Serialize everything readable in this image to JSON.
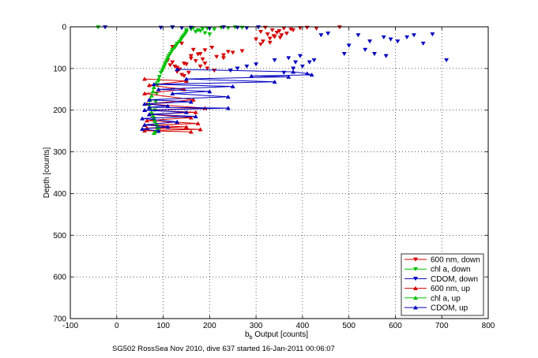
{
  "chart_data": {
    "type": "line",
    "title": "",
    "xlabel_main": "b",
    "xlabel_sub": "b",
    "xlabel_rest": " Output [counts]",
    "ylabel": "Depth [counts]",
    "xlim": [
      -100,
      800
    ],
    "ylim": [
      0,
      700
    ],
    "y_reversed": true,
    "grid": true,
    "grid_style": "dotted",
    "xticks": [
      "-100",
      "0",
      "100",
      "200",
      "300",
      "400",
      "500",
      "600",
      "700",
      "800"
    ],
    "yticks": [
      "0",
      "100",
      "200",
      "300",
      "400",
      "500",
      "600",
      "700"
    ],
    "legend_position": "bottom-right",
    "footer": "SG502 RossSea Nov 2010, dive 637 started 16-Jan-2011 00:06:07",
    "series": [
      {
        "name": "600 nm, down",
        "color": "#d40000",
        "marker": "triangle-down",
        "line": false,
        "x": [
          320,
          335,
          345,
          355,
          340,
          330,
          360,
          350,
          375,
          395,
          410,
          430,
          480,
          310,
          325,
          338,
          352,
          366,
          380,
          300,
          315,
          330,
          310,
          240,
          230,
          180,
          165,
          140,
          120,
          160,
          185,
          170,
          190,
          215,
          230,
          250,
          270,
          180,
          195,
          210,
          120,
          115,
          130,
          145,
          160,
          175,
          190,
          205,
          155,
          140,
          130,
          145,
          125,
          110,
          135,
          150
        ],
        "y": [
          2,
          8,
          14,
          20,
          24,
          28,
          4,
          10,
          6,
          3,
          2,
          4,
          1,
          12,
          18,
          22,
          26,
          16,
          8,
          30,
          35,
          38,
          42,
          60,
          75,
          65,
          55,
          40,
          48,
          70,
          78,
          82,
          88,
          72,
          68,
          62,
          58,
          95,
          100,
          105,
          85,
          92,
          98,
          88,
          76,
          66,
          56,
          50,
          110,
          115,
          108,
          118,
          95,
          80,
          102,
          90
        ]
      },
      {
        "name": "chl a, down",
        "color": "#00c000",
        "marker": "triangle-down",
        "line": false,
        "x": [
          -40,
          120,
          165,
          185,
          175,
          195,
          210,
          225,
          240,
          255,
          270,
          170,
          180,
          190,
          200,
          160,
          150,
          150,
          148,
          145,
          142,
          140,
          138,
          135,
          130,
          128,
          125,
          120,
          118,
          115,
          112,
          110,
          108,
          106,
          104,
          102,
          100,
          98,
          95,
          92,
          90,
          88,
          86,
          84,
          82,
          80
        ],
        "y": [
          1,
          2,
          3,
          5,
          8,
          4,
          6,
          2,
          3,
          1,
          2,
          12,
          10,
          15,
          18,
          6,
          8,
          12,
          16,
          20,
          24,
          28,
          32,
          36,
          40,
          45,
          50,
          55,
          60,
          65,
          70,
          75,
          80,
          85,
          90,
          95,
          100,
          105,
          110,
          120,
          130,
          140,
          160,
          180,
          200,
          220
        ]
      },
      {
        "name": "CDOM, down",
        "color": "#0000c0",
        "marker": "triangle-down",
        "line": false,
        "x": [
          -25,
          95,
          120,
          140,
          160,
          200,
          230,
          260,
          280,
          305,
          440,
          455,
          490,
          520,
          545,
          575,
          590,
          605,
          625,
          640,
          660,
          680,
          710,
          500,
          535,
          555,
          580,
          370,
          385,
          395,
          340,
          300,
          280,
          260,
          245,
          380,
          400,
          415,
          425,
          360
        ],
        "y": [
          1,
          2,
          1,
          3,
          2,
          4,
          1,
          2,
          3,
          1,
          20,
          16,
          65,
          20,
          35,
          25,
          30,
          35,
          25,
          20,
          40,
          18,
          80,
          45,
          55,
          65,
          70,
          75,
          85,
          70,
          80,
          90,
          95,
          100,
          105,
          100,
          95,
          85,
          80,
          110
        ]
      },
      {
        "name": "600 nm, up",
        "color": "#d40000",
        "marker": "triangle-up",
        "line": true,
        "x": [
          60,
          150,
          70,
          145,
          60,
          165,
          65,
          190,
          60,
          170,
          70,
          160,
          65,
          175,
          60,
          150,
          65,
          180,
          60,
          160
        ],
        "y": [
          125,
          130,
          140,
          150,
          160,
          175,
          185,
          195,
          200,
          205,
          210,
          218,
          225,
          232,
          236,
          240,
          243,
          246,
          249,
          252
        ]
      },
      {
        "name": "chl a, up",
        "color": "#00c000",
        "marker": "triangle-up",
        "line": true,
        "x": [
          90,
          85,
          80,
          78,
          75,
          72,
          70,
          72,
          75,
          78,
          80,
          82,
          85,
          88,
          90,
          88,
          85,
          82,
          80
        ],
        "y": [
          125,
          135,
          145,
          155,
          165,
          175,
          185,
          195,
          205,
          213,
          220,
          226,
          232,
          238,
          242,
          246,
          249,
          252,
          255
        ]
      },
      {
        "name": "CDOM, up",
        "color": "#0000c0",
        "marker": "triangle-up",
        "line": true,
        "x": [
          130,
          380,
          410,
          420,
          290,
          370,
          150,
          340,
          80,
          250,
          90,
          200,
          120,
          240,
          70,
          160,
          60,
          110,
          70,
          240,
          60,
          150,
          70,
          170,
          55,
          130,
          60,
          110,
          55,
          90
        ],
        "y": [
          102,
          108,
          112,
          115,
          118,
          120,
          125,
          132,
          138,
          143,
          150,
          155,
          160,
          168,
          175,
          180,
          185,
          190,
          193,
          195,
          200,
          205,
          210,
          215,
          220,
          228,
          235,
          240,
          245,
          250
        ]
      }
    ]
  }
}
